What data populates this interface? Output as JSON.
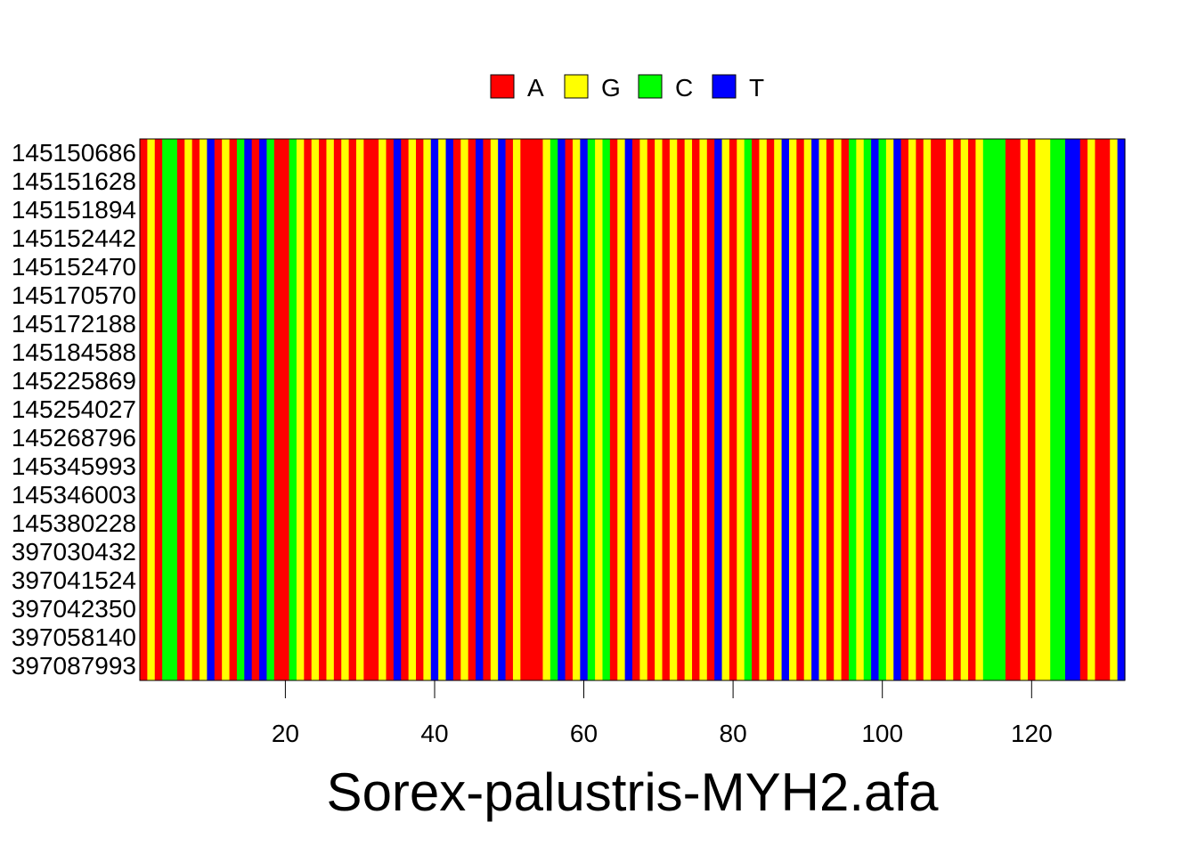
{
  "chart_data": {
    "type": "heatmap",
    "title": "Sorex-palustris-MYH2.afa",
    "legend": {
      "placement": "top-center",
      "items": [
        {
          "label": "A",
          "color": "#ff0000"
        },
        {
          "label": "G",
          "color": "#ffff00"
        },
        {
          "label": "C",
          "color": "#00ff00"
        },
        {
          "label": "T",
          "color": "#0000ff"
        }
      ]
    },
    "rows": [
      "145150686",
      "145151628",
      "145151894",
      "145152442",
      "145152470",
      "145170570",
      "145172188",
      "145184588",
      "145225869",
      "145254027",
      "145268796",
      "145345993",
      "145346003",
      "145380228",
      "397030432",
      "397041524",
      "397042350",
      "397058140",
      "397087993"
    ],
    "x_ticks": [
      20,
      40,
      60,
      80,
      100,
      120
    ],
    "xlim": [
      1,
      128
    ],
    "sequence": "AGACCAGAGTAGACTATCAACGAGAGAGAGAAGATAGAGTGTAGATAGTAGAAAGCTAGTCGCAGTAGAGAGAGAGATGAGCAGAGTGAGTGAGACGCTCGTAGAGAAGAGAGCCCAAGAGGCCTTAGAAGT"
  }
}
